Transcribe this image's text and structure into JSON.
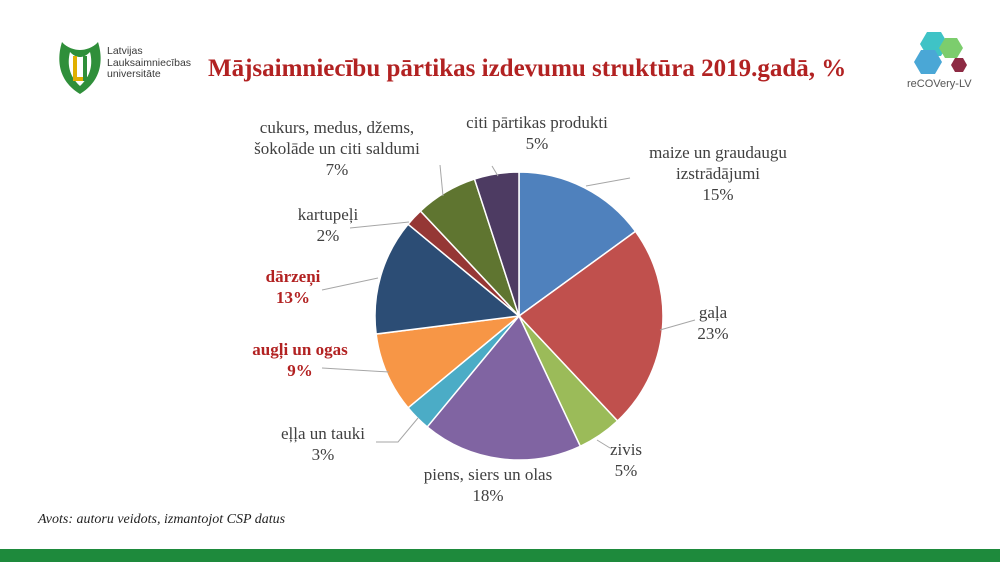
{
  "header": {
    "title": "Mājsaimniecību pārtikas izdevumu struktūra 2019.gadā, %",
    "university_logo": {
      "lines": [
        "Latvijas",
        "Lauksaimniecības",
        "universitāte"
      ],
      "colors": {
        "green": "#2f8f3a",
        "gold": "#e0b000"
      }
    },
    "project_logo": {
      "brand": "reCOVery-LV",
      "colors": [
        "#3fc3c6",
        "#4aa7d6",
        "#7ccd6d",
        "#8d2a43"
      ]
    }
  },
  "chart_data": {
    "type": "pie",
    "title": "Mājsaimniecību pārtikas izdevumu struktūra 2019.gadā, %",
    "unit": "%",
    "start_angle_deg": 0,
    "direction": "clockwise",
    "slices": [
      {
        "label": "maize un graudaugu izstrādājumi",
        "label_lines": [
          "maize un graudaugu",
          "izstrādājumi"
        ],
        "value": 15,
        "value_label": "15%",
        "color": "#4f81bd",
        "highlight": false
      },
      {
        "label": "gaļa",
        "label_lines": [
          "gaļa"
        ],
        "value": 23,
        "value_label": "23%",
        "color": "#c0504d",
        "highlight": false
      },
      {
        "label": "zivis",
        "label_lines": [
          "zivis"
        ],
        "value": 5,
        "value_label": "5%",
        "color": "#9bbb59",
        "highlight": false
      },
      {
        "label": "piens, siers un olas",
        "label_lines": [
          "piens, siers un olas"
        ],
        "value": 18,
        "value_label": "18%",
        "color": "#8064a2",
        "highlight": false
      },
      {
        "label": "eļļa un tauki",
        "label_lines": [
          "eļļa un tauki"
        ],
        "value": 3,
        "value_label": "3%",
        "color": "#4bacc6",
        "highlight": false
      },
      {
        "label": "augļi un ogas",
        "label_lines": [
          "augļi un ogas"
        ],
        "value": 9,
        "value_label": "9%",
        "color": "#f79646",
        "highlight": true
      },
      {
        "label": "dārzeņi",
        "label_lines": [
          "dārzeņi"
        ],
        "value": 13,
        "value_label": "13%",
        "color": "#2c4d75",
        "highlight": true
      },
      {
        "label": "kartupeļi",
        "label_lines": [
          "kartupeļi"
        ],
        "value": 2,
        "value_label": "2%",
        "color": "#953735",
        "highlight": false
      },
      {
        "label": "cukurs, medus, džems, šokolāde un citi saldumi",
        "label_lines": [
          "cukurs, medus, džems,",
          "šokolāde un citi saldumi"
        ],
        "value": 7,
        "value_label": "7%",
        "color": "#5f7530",
        "highlight": false
      },
      {
        "label": "citi pārtikas produkti",
        "label_lines": [
          "citi pārtikas produkti"
        ],
        "value": 5,
        "value_label": "5%",
        "color": "#4d3b62",
        "highlight": false
      }
    ],
    "label_colors": {
      "normal": "#404040",
      "highlight": "#b22222"
    },
    "leader_line_color": "#a6a6a6"
  },
  "footer": {
    "source": "Avots: autoru veidots, izmantojot CSP datus",
    "bar_color": "#1e8a3c"
  }
}
